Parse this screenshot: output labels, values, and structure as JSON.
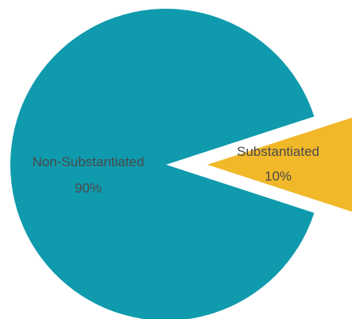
{
  "chart_data": {
    "type": "pie",
    "title": "",
    "slices": [
      {
        "label": "Non-Substantiated",
        "value": 90,
        "display": "90%",
        "color": "#0f9aad",
        "exploded": false
      },
      {
        "label": "Substantiated",
        "value": 10,
        "display": "10%",
        "color": "#f1b829",
        "exploded": true
      }
    ],
    "legend": false
  }
}
